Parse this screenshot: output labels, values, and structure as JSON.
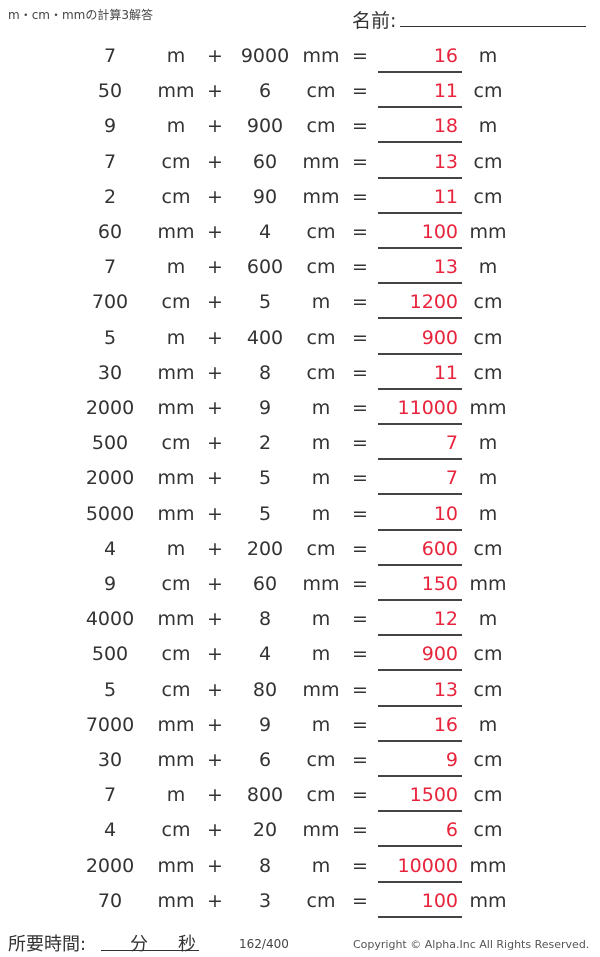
{
  "header": {
    "title": "m・cm・mmの計算3解答",
    "name_label": "名前:"
  },
  "problems": [
    {
      "a": "7",
      "ua": "m",
      "b": "9000",
      "ub": "mm",
      "ans": "16",
      "uans": "m"
    },
    {
      "a": "50",
      "ua": "mm",
      "b": "6",
      "ub": "cm",
      "ans": "11",
      "uans": "cm"
    },
    {
      "a": "9",
      "ua": "m",
      "b": "900",
      "ub": "cm",
      "ans": "18",
      "uans": "m"
    },
    {
      "a": "7",
      "ua": "cm",
      "b": "60",
      "ub": "mm",
      "ans": "13",
      "uans": "cm"
    },
    {
      "a": "2",
      "ua": "cm",
      "b": "90",
      "ub": "mm",
      "ans": "11",
      "uans": "cm"
    },
    {
      "a": "60",
      "ua": "mm",
      "b": "4",
      "ub": "cm",
      "ans": "100",
      "uans": "mm"
    },
    {
      "a": "7",
      "ua": "m",
      "b": "600",
      "ub": "cm",
      "ans": "13",
      "uans": "m"
    },
    {
      "a": "700",
      "ua": "cm",
      "b": "5",
      "ub": "m",
      "ans": "1200",
      "uans": "cm"
    },
    {
      "a": "5",
      "ua": "m",
      "b": "400",
      "ub": "cm",
      "ans": "900",
      "uans": "cm"
    },
    {
      "a": "30",
      "ua": "mm",
      "b": "8",
      "ub": "cm",
      "ans": "11",
      "uans": "cm"
    },
    {
      "a": "2000",
      "ua": "mm",
      "b": "9",
      "ub": "m",
      "ans": "11000",
      "uans": "mm"
    },
    {
      "a": "500",
      "ua": "cm",
      "b": "2",
      "ub": "m",
      "ans": "7",
      "uans": "m"
    },
    {
      "a": "2000",
      "ua": "mm",
      "b": "5",
      "ub": "m",
      "ans": "7",
      "uans": "m"
    },
    {
      "a": "5000",
      "ua": "mm",
      "b": "5",
      "ub": "m",
      "ans": "10",
      "uans": "m"
    },
    {
      "a": "4",
      "ua": "m",
      "b": "200",
      "ub": "cm",
      "ans": "600",
      "uans": "cm"
    },
    {
      "a": "9",
      "ua": "cm",
      "b": "60",
      "ub": "mm",
      "ans": "150",
      "uans": "mm"
    },
    {
      "a": "4000",
      "ua": "mm",
      "b": "8",
      "ub": "m",
      "ans": "12",
      "uans": "m"
    },
    {
      "a": "500",
      "ua": "cm",
      "b": "4",
      "ub": "m",
      "ans": "900",
      "uans": "cm"
    },
    {
      "a": "5",
      "ua": "cm",
      "b": "80",
      "ub": "mm",
      "ans": "13",
      "uans": "cm"
    },
    {
      "a": "7000",
      "ua": "mm",
      "b": "9",
      "ub": "m",
      "ans": "16",
      "uans": "m"
    },
    {
      "a": "30",
      "ua": "mm",
      "b": "6",
      "ub": "cm",
      "ans": "9",
      "uans": "cm"
    },
    {
      "a": "7",
      "ua": "m",
      "b": "800",
      "ub": "cm",
      "ans": "1500",
      "uans": "cm"
    },
    {
      "a": "4",
      "ua": "cm",
      "b": "20",
      "ub": "mm",
      "ans": "6",
      "uans": "cm"
    },
    {
      "a": "2000",
      "ua": "mm",
      "b": "8",
      "ub": "m",
      "ans": "10000",
      "uans": "mm"
    },
    {
      "a": "70",
      "ua": "mm",
      "b": "3",
      "ub": "cm",
      "ans": "100",
      "uans": "mm"
    }
  ],
  "operators": {
    "plus": "+",
    "equals": "="
  },
  "footer": {
    "time_label": "所要時間:",
    "minutes": "分",
    "seconds": "秒",
    "page": "162/400",
    "copyright": "Copyright © Alpha.Inc All Rights Reserved."
  },
  "colors": {
    "answer": "#e8243c",
    "text": "#333333"
  }
}
